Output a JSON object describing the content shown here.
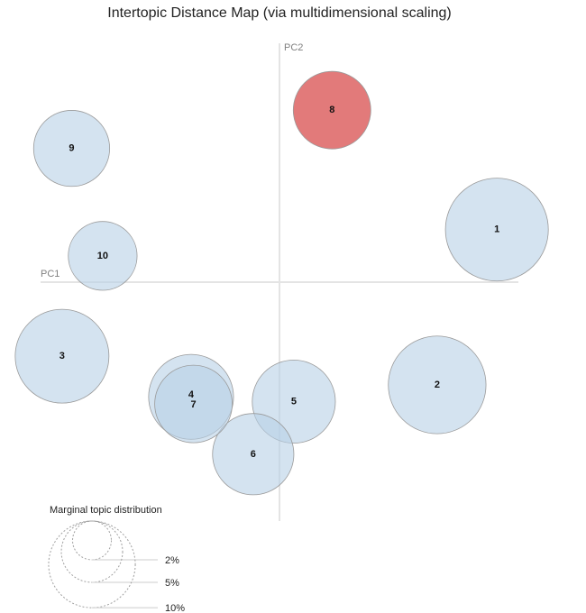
{
  "chart_data": {
    "type": "scatter",
    "title": "Intertopic Distance Map (via multidimensional scaling)",
    "xlabel": "PC1",
    "ylabel": "PC2",
    "xlim": [
      -1.0,
      1.0
    ],
    "ylim": [
      -1.0,
      1.0
    ],
    "grid": false,
    "size_measure": "Marginal topic distribution (%)",
    "topics": [
      {
        "id": "1",
        "pc1": 0.91,
        "pc2": 0.22,
        "marginal_pct": 14.1
      },
      {
        "id": "2",
        "pc1": 0.66,
        "pc2": -0.43,
        "marginal_pct": 12.7
      },
      {
        "id": "3",
        "pc1": -0.91,
        "pc2": -0.31,
        "marginal_pct": 11.7
      },
      {
        "id": "4",
        "pc1": -0.37,
        "pc2": -0.48,
        "marginal_pct": 9.6
      },
      {
        "id": "5",
        "pc1": 0.06,
        "pc2": -0.5,
        "marginal_pct": 9.2
      },
      {
        "id": "6",
        "pc1": -0.11,
        "pc2": -0.72,
        "marginal_pct": 8.8
      },
      {
        "id": "7",
        "pc1": -0.36,
        "pc2": -0.51,
        "marginal_pct": 8.0
      },
      {
        "id": "8",
        "pc1": 0.22,
        "pc2": 0.72,
        "marginal_pct": 8.0
      },
      {
        "id": "9",
        "pc1": -0.87,
        "pc2": 0.56,
        "marginal_pct": 7.7
      },
      {
        "id": "10",
        "pc1": -0.74,
        "pc2": 0.11,
        "marginal_pct": 6.3
      }
    ],
    "highlighted_topic": "8",
    "colors": {
      "topic_fill": "#b7d1e6",
      "topic_fill_opacity": 0.6,
      "selected_fill": "#e27a7a",
      "selected_label": "#8b0000",
      "axis": "#e4e4e4"
    },
    "legend": {
      "title": "Marginal topic distribution",
      "placement": "bottom-left",
      "entries": [
        {
          "label": "2%",
          "pct": 2
        },
        {
          "label": "5%",
          "pct": 5
        },
        {
          "label": "10%",
          "pct": 10
        }
      ]
    }
  }
}
